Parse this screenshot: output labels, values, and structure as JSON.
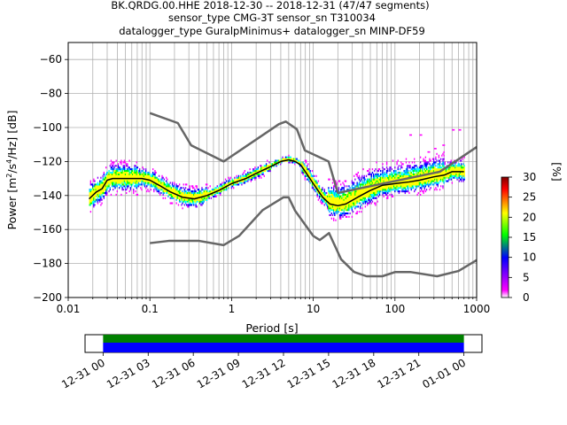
{
  "chart_data": {
    "type": "heatmap",
    "title_lines": [
      "BK.QRDG.00.HHE   2018-12-30 -- 2018-12-31  (47/47 segments)",
      "sensor_type CMG-3T sensor_sn T310034",
      "datalogger_type GuralpMinimus+ datalogger_sn MINP-DF59"
    ],
    "xlabel": "Period [s]",
    "ylabel": "Power [m²/s⁴/Hz] [dB]",
    "ylabel_parts": {
      "pre": "Power [m",
      "sup1": "2",
      "mid": "/s",
      "sup2": "4",
      "post": "/Hz] [dB]"
    },
    "x_scale": "log",
    "xlim": [
      0.01,
      1000
    ],
    "ylim": [
      -200,
      -50
    ],
    "x_ticks": [
      {
        "v": 0.01,
        "label": "0.01"
      },
      {
        "v": 0.1,
        "label": "0.1"
      },
      {
        "v": 1,
        "label": "1"
      },
      {
        "v": 10,
        "label": "10"
      },
      {
        "v": 100,
        "label": "100"
      },
      {
        "v": 1000,
        "label": "1000"
      }
    ],
    "y_ticks": [
      {
        "v": -60,
        "label": "−60"
      },
      {
        "v": -80,
        "label": "−80"
      },
      {
        "v": -100,
        "label": "−100"
      },
      {
        "v": -120,
        "label": "−120"
      },
      {
        "v": -140,
        "label": "−140"
      },
      {
        "v": -160,
        "label": "−160"
      },
      {
        "v": -180,
        "label": "−180"
      },
      {
        "v": -200,
        "label": "−200"
      }
    ],
    "grid": true,
    "colorbar": {
      "label": "[%]",
      "range": [
        0,
        30
      ],
      "ticks": [
        {
          "v": 0,
          "label": "0"
        },
        {
          "v": 5,
          "label": "5"
        },
        {
          "v": 10,
          "label": "10"
        },
        {
          "v": 15,
          "label": "15"
        },
        {
          "v": 20,
          "label": "20"
        },
        {
          "v": 25,
          "label": "25"
        },
        {
          "v": 30,
          "label": "30"
        }
      ],
      "colors": [
        "#ffffff",
        "#ff00ff",
        "#0000ff",
        "#00ff00",
        "#ffff00",
        "#ff0000",
        "#800000"
      ]
    },
    "mode_curve": {
      "name": "mode",
      "color": "#000000",
      "x": [
        0.018,
        0.022,
        0.026,
        0.03,
        0.035,
        0.05,
        0.08,
        0.1,
        0.13,
        0.18,
        0.25,
        0.35,
        0.5,
        0.7,
        1.0,
        1.5,
        2.0,
        3.0,
        4.0,
        5.0,
        6.0,
        7.0,
        8.0,
        10,
        13,
        16,
        20,
        25,
        35,
        50,
        70,
        100,
        150,
        200,
        300,
        400,
        500,
        700
      ],
      "y": [
        -142,
        -138,
        -136,
        -131,
        -130,
        -130,
        -130,
        -131,
        -134,
        -138,
        -141,
        -142,
        -140,
        -137,
        -133,
        -130,
        -127,
        -123,
        -120,
        -119,
        -120,
        -122,
        -126,
        -133,
        -141,
        -145,
        -146,
        -145,
        -141,
        -137,
        -134,
        -133,
        -132,
        -131,
        -129,
        -128,
        -126,
        -126
      ]
    },
    "nhnm": {
      "name": "NHNM",
      "color": "#666666",
      "x": [
        0.1,
        0.22,
        0.32,
        0.8,
        3.8,
        4.6,
        6.3,
        7.9,
        15.4,
        20,
        354.8,
        1000
      ],
      "y": [
        -91.5,
        -97.4,
        -110.5,
        -120,
        -98,
        -96.5,
        -101,
        -113.5,
        -120,
        -138.5,
        -126,
        -111.5
      ]
    },
    "nlnm": {
      "name": "NLNM",
      "color": "#666666",
      "x": [
        0.1,
        0.17,
        0.4,
        0.8,
        1.24,
        2.4,
        4.3,
        5.0,
        6.0,
        10,
        12,
        15.6,
        21.9,
        31.6,
        45,
        70,
        101,
        154,
        328,
        600,
        1000
      ],
      "y": [
        -168,
        -166.7,
        -166.7,
        -169.2,
        -163.7,
        -148.6,
        -141.1,
        -141.1,
        -149,
        -163.8,
        -166.2,
        -162.1,
        -177.5,
        -185,
        -187.5,
        -187.5,
        -185,
        -185,
        -187.5,
        -184.4,
        -178
      ]
    },
    "time_axis": {
      "tick_labels": [
        "12-31 00",
        "12-31 03",
        "12-31 06",
        "12-31 09",
        "12-31 12",
        "12-31 15",
        "12-31 18",
        "12-31 21",
        "01-01 00"
      ],
      "data_start_hour": 0,
      "data_end_hour": 24,
      "range_hours": [
        -1.2,
        25.2
      ],
      "bar_colors": [
        "#008000",
        "#0000ff"
      ]
    }
  }
}
